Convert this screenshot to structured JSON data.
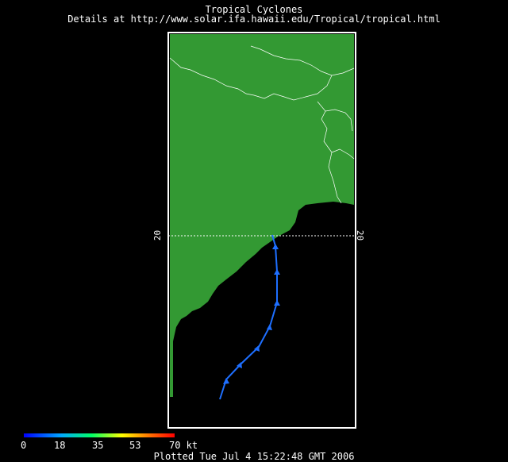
{
  "header": {
    "title": "Tropical Cyclones",
    "details": "Details at http://www.solar.ifa.hawaii.edu/Tropical/tropical.html"
  },
  "map": {
    "latitude_label": "20",
    "land_color": "#339933",
    "ocean_color": "#000000",
    "border_color": "#ffffff",
    "track_color": "#1e6fff"
  },
  "legend": {
    "ticks": [
      "0",
      "18",
      "35",
      "53",
      "70 kt"
    ]
  },
  "footer": {
    "plotted": "Plotted Tue Jul 4 15:22:48 GMT 2006"
  }
}
